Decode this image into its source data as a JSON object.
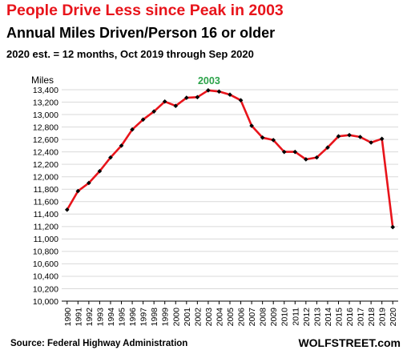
{
  "title": "People Drive Less since Peak in 2003",
  "subtitle": "Annual Miles Driven/Person  16 or older",
  "note": "2020 est. = 12 months, Oct 2019 through Sep 2020",
  "source": "Source: Federal Highway Administration",
  "brand": "WOLFSTREET.com",
  "colors": {
    "title": "#e8141b",
    "line": "#e8141b",
    "marker": "#000000",
    "annotation": "#2ca34a",
    "grid": "#d9d9d9"
  },
  "chart_data": {
    "type": "line",
    "ylabel": "Miles",
    "ylim": [
      10000,
      13400
    ],
    "yticks": [
      10000,
      10200,
      10400,
      10600,
      10800,
      11000,
      11200,
      11400,
      11600,
      11800,
      12000,
      12200,
      12400,
      12600,
      12800,
      13000,
      13200,
      13400
    ],
    "grid": "horizontal",
    "categories": [
      "1990",
      "1991",
      "1992",
      "1993",
      "1994",
      "1995",
      "1996",
      "1997",
      "1998",
      "1999",
      "2000",
      "2001",
      "2002",
      "2003",
      "2004",
      "2005",
      "2006",
      "2007",
      "2008",
      "2009",
      "2010",
      "2011",
      "2012",
      "2013",
      "2014",
      "2015",
      "2016",
      "2017",
      "2018",
      "2019",
      "2020"
    ],
    "series": [
      {
        "values": [
          11470,
          11770,
          11900,
          12090,
          12310,
          12500,
          12760,
          12920,
          13050,
          13210,
          13140,
          13270,
          13280,
          13390,
          13370,
          13320,
          13230,
          12820,
          12630,
          12590,
          12400,
          12400,
          12280,
          12310,
          12470,
          12650,
          12670,
          12640,
          12550,
          12610,
          11190
        ]
      }
    ],
    "annotations": [
      {
        "x": "2003",
        "text": "2003"
      }
    ]
  }
}
